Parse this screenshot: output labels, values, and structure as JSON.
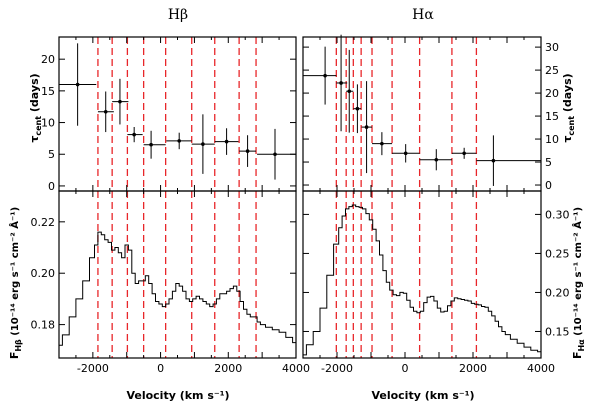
{
  "chart_data": [
    {
      "type": "scatter",
      "panel": "upper-left",
      "title": "Hβ",
      "ylabel": "τ_cent (days)",
      "xlim": [
        -3000,
        4000
      ],
      "ylim": [
        -0.8,
        23.5
      ],
      "yticks": [
        0,
        5,
        10,
        15,
        20
      ],
      "points": [
        {
          "x": -2450,
          "y": 16.0,
          "xlo": -3000,
          "xhi": -1900,
          "yerr": 6.5
        },
        {
          "x": -1620,
          "y": 11.7,
          "xlo": -1850,
          "xhi": -1380,
          "yerr": 3.2
        },
        {
          "x": -1200,
          "y": 13.3,
          "xlo": -1430,
          "xhi": -950,
          "yerr": 3.6
        },
        {
          "x": -780,
          "y": 8.1,
          "xlo": -980,
          "xhi": -530,
          "yerr": 1.2
        },
        {
          "x": -280,
          "y": 6.5,
          "xlo": -500,
          "xhi": 150,
          "yerr": 2.2
        },
        {
          "x": 550,
          "y": 7.1,
          "xlo": 170,
          "xhi": 920,
          "yerr": 1.3
        },
        {
          "x": 1250,
          "y": 6.6,
          "xlo": 920,
          "xhi": 1600,
          "yerr": 4.7
        },
        {
          "x": 1950,
          "y": 7.0,
          "xlo": 1600,
          "xhi": 2300,
          "yerr": 2.1
        },
        {
          "x": 2570,
          "y": 5.5,
          "xlo": 2320,
          "xhi": 2820,
          "yerr": 2.5
        },
        {
          "x": 3380,
          "y": 5.0,
          "xlo": 2850,
          "xhi": 4000,
          "yerr": 4.0
        }
      ]
    },
    {
      "type": "scatter",
      "panel": "upper-right",
      "title": "Hα",
      "ylabel": "τ_cent (days)",
      "xlim": [
        -3000,
        4000
      ],
      "ylim": [
        -1.3,
        32.2
      ],
      "yticks": [
        0,
        5,
        10,
        15,
        20,
        25,
        30
      ],
      "points": [
        {
          "x": -2350,
          "y": 23.8,
          "xlo": -3000,
          "xhi": -2020,
          "yerr": 6.3
        },
        {
          "x": -1880,
          "y": 22.2,
          "xlo": -2020,
          "xhi": -1700,
          "yerr": 10.5
        },
        {
          "x": -1640,
          "y": 20.4,
          "xlo": -1730,
          "xhi": -1520,
          "yerr": 9.0
        },
        {
          "x": -1400,
          "y": 16.6,
          "xlo": -1520,
          "xhi": -1290,
          "yerr": 5.3
        },
        {
          "x": -1130,
          "y": 12.6,
          "xlo": -1280,
          "xhi": -970,
          "yerr": 10.0
        },
        {
          "x": -680,
          "y": 9.0,
          "xlo": -970,
          "xhi": -380,
          "yerr": 2.5
        },
        {
          "x": 20,
          "y": 6.9,
          "xlo": -380,
          "xhi": 430,
          "yerr": 2.0
        },
        {
          "x": 920,
          "y": 5.5,
          "xlo": 430,
          "xhi": 1380,
          "yerr": 2.3
        },
        {
          "x": 1740,
          "y": 6.9,
          "xlo": 1380,
          "xhi": 2100,
          "yerr": 1.2
        },
        {
          "x": 2600,
          "y": 5.3,
          "xlo": 2100,
          "xhi": 4000,
          "yerr": 5.5
        }
      ]
    },
    {
      "type": "line",
      "panel": "lower-left",
      "xlabel": "Velocity (km s⁻¹)",
      "ylabel": "F_Hβ (10⁻¹⁴ erg s⁻¹ cm⁻² Å⁻¹)",
      "xlim": [
        -3000,
        4000
      ],
      "ylim": [
        0.167,
        0.232
      ],
      "yticks": [
        0.18,
        0.2,
        0.22
      ],
      "xticks": [
        -2000,
        0,
        2000,
        4000
      ],
      "x": [
        -3000,
        -2800,
        -2600,
        -2400,
        -2200,
        -2000,
        -1900,
        -1800,
        -1700,
        -1600,
        -1500,
        -1400,
        -1300,
        -1200,
        -1100,
        -1000,
        -900,
        -800,
        -700,
        -600,
        -500,
        -400,
        -300,
        -200,
        -100,
        0,
        100,
        200,
        300,
        400,
        500,
        600,
        700,
        800,
        900,
        1000,
        1100,
        1200,
        1300,
        1400,
        1500,
        1600,
        1700,
        1800,
        1900,
        2000,
        2100,
        2200,
        2300,
        2400,
        2500,
        2600,
        2700,
        2800,
        2900,
        3000,
        3200,
        3400,
        3600,
        3800,
        4000
      ],
      "y": [
        0.172,
        0.176,
        0.183,
        0.19,
        0.197,
        0.206,
        0.211,
        0.216,
        0.215,
        0.213,
        0.212,
        0.209,
        0.21,
        0.208,
        0.206,
        0.211,
        0.209,
        0.2,
        0.196,
        0.197,
        0.197,
        0.199,
        0.196,
        0.192,
        0.189,
        0.188,
        0.187,
        0.188,
        0.19,
        0.193,
        0.196,
        0.195,
        0.193,
        0.19,
        0.189,
        0.19,
        0.191,
        0.19,
        0.189,
        0.188,
        0.187,
        0.188,
        0.19,
        0.192,
        0.192,
        0.193,
        0.194,
        0.195,
        0.193,
        0.189,
        0.186,
        0.184,
        0.183,
        0.183,
        0.181,
        0.18,
        0.179,
        0.178,
        0.177,
        0.175,
        0.173
      ]
    },
    {
      "type": "line",
      "panel": "lower-right",
      "xlabel": "Velocity (km s⁻¹)",
      "ylabel": "F_Hα (10⁻¹⁴ erg s⁻¹ cm⁻² Å⁻¹)",
      "xlim": [
        -3000,
        4000
      ],
      "ylim": [
        0.116,
        0.33
      ],
      "yticks": [
        0.15,
        0.2,
        0.25,
        0.3
      ],
      "xticks": [
        -2000,
        0,
        2000,
        4000
      ],
      "x": [
        -3000,
        -2800,
        -2600,
        -2400,
        -2200,
        -2000,
        -1900,
        -1800,
        -1700,
        -1600,
        -1500,
        -1400,
        -1300,
        -1200,
        -1100,
        -1000,
        -900,
        -800,
        -700,
        -600,
        -500,
        -400,
        -300,
        -200,
        -100,
        0,
        100,
        200,
        300,
        400,
        500,
        600,
        700,
        800,
        900,
        1000,
        1100,
        1200,
        1300,
        1400,
        1500,
        1600,
        1700,
        1800,
        1900,
        2000,
        2100,
        2200,
        2300,
        2400,
        2500,
        2600,
        2700,
        2800,
        2900,
        3000,
        3200,
        3400,
        3600,
        3800,
        4000
      ],
      "y": [
        0.12,
        0.133,
        0.15,
        0.18,
        0.222,
        0.262,
        0.283,
        0.298,
        0.307,
        0.31,
        0.312,
        0.31,
        0.309,
        0.307,
        0.301,
        0.293,
        0.281,
        0.266,
        0.248,
        0.228,
        0.213,
        0.203,
        0.197,
        0.196,
        0.2,
        0.199,
        0.19,
        0.181,
        0.176,
        0.174,
        0.176,
        0.187,
        0.194,
        0.195,
        0.189,
        0.18,
        0.175,
        0.176,
        0.183,
        0.189,
        0.193,
        0.192,
        0.191,
        0.19,
        0.189,
        0.186,
        0.185,
        0.184,
        0.182,
        0.181,
        0.176,
        0.17,
        0.163,
        0.156,
        0.15,
        0.146,
        0.14,
        0.135,
        0.13,
        0.126,
        0.124
      ]
    }
  ],
  "bin_edges": {
    "hb": [
      -1850,
      -1430,
      -980,
      -500,
      150,
      920,
      1600,
      2320,
      2820
    ],
    "ha": [
      -2020,
      -1730,
      -1520,
      -1290,
      -970,
      -380,
      430,
      1380,
      2100
    ]
  },
  "text": {
    "title_hb": "Hβ",
    "title_ha": "Hα",
    "xlabel": "Velocity (km s⁻¹)",
    "tau_label": "τ",
    "tau_sub": "cent",
    "tau_unit": " (days)",
    "flux_label": "F",
    "flux_sub_hb": "Hβ",
    "flux_sub_ha": "Hα",
    "flux_unit": " (10⁻¹⁴ erg s⁻¹ cm⁻² Å⁻¹)"
  },
  "colors": {
    "data": "#000000",
    "bin_lines": "#e8262a"
  }
}
